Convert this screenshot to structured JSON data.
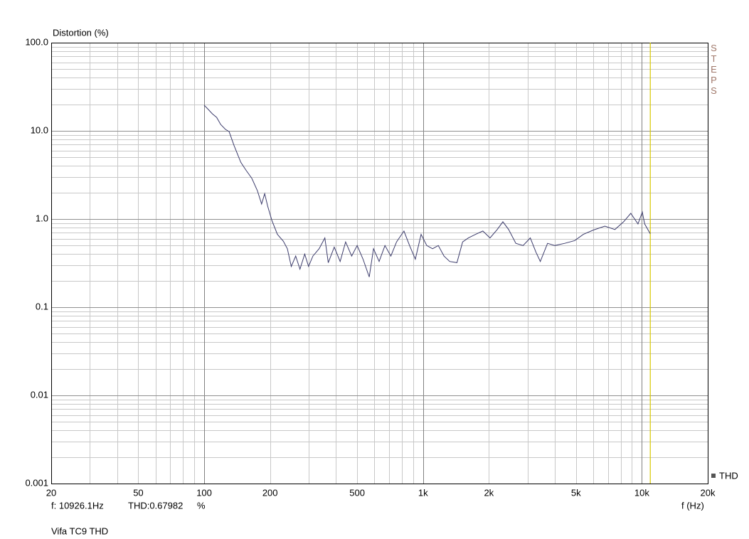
{
  "chart_data": {
    "type": "line",
    "y_label": "Distortion (%)",
    "x_label": "f (Hz)",
    "caption": "Vifa TC9 THD",
    "side_label": "STEPS",
    "xlog": true,
    "ylog": true,
    "grid": true,
    "minor_grid": true,
    "xlim": [
      20,
      20000
    ],
    "ylim": [
      0.001,
      100
    ],
    "xticks": [
      20,
      50,
      100,
      200,
      500,
      {
        "value": 1000,
        "label": "1k"
      },
      {
        "value": 2000,
        "label": "2k"
      },
      {
        "value": 5000,
        "label": "5k"
      },
      {
        "value": 10000,
        "label": "10k"
      },
      {
        "value": 20000,
        "label": "20k"
      }
    ],
    "yticks": [
      0.001,
      0.01,
      0.1,
      {
        "value": 1,
        "label": "1.0"
      },
      {
        "value": 10,
        "label": "10.0"
      },
      {
        "value": 100,
        "label": "100.0"
      }
    ],
    "legend": "bottom-right",
    "cursor": {
      "x": {
        "value": 10926.1,
        "label": "f:  10926.1Hz"
      },
      "y": {
        "value": 0.67982,
        "label": "THD:0.67982"
      },
      "unit": "%",
      "color": "#d8c800"
    },
    "x": [
      100,
      103,
      109,
      114,
      119,
      125,
      130,
      137,
      147,
      155,
      165,
      175,
      183,
      189,
      195,
      204,
      216,
      230,
      240,
      250,
      262,
      274,
      288,
      300,
      314,
      335,
      356,
      369,
      393,
      418,
      443,
      472,
      500,
      532,
      568,
      594,
      630,
      670,
      713,
      757,
      818,
      868,
      922,
      980,
      1040,
      1105,
      1174,
      1247,
      1324,
      1429,
      1517,
      1612,
      1739,
      1876,
      2024,
      2183,
      2318,
      2462,
      2655,
      2865,
      3090,
      3282,
      3436,
      3707,
      4000,
      4443,
      4935,
      5403,
      6002,
      6776,
      7530,
      8250,
      8900,
      9600,
      10050,
      10300,
      10926.1
    ],
    "series": [
      {
        "name": "THD",
        "color": "#3c3c6c",
        "values": [
          19.5,
          18.1,
          15.6,
          14.2,
          11.8,
          10.4,
          9.8,
          6.8,
          4.4,
          3.6,
          2.9,
          2.1,
          1.48,
          1.94,
          1.4,
          0.96,
          0.67,
          0.56,
          0.46,
          0.29,
          0.38,
          0.27,
          0.4,
          0.29,
          0.38,
          0.46,
          0.61,
          0.32,
          0.48,
          0.33,
          0.55,
          0.38,
          0.5,
          0.35,
          0.22,
          0.46,
          0.33,
          0.5,
          0.38,
          0.55,
          0.73,
          0.5,
          0.35,
          0.67,
          0.5,
          0.46,
          0.5,
          0.38,
          0.33,
          0.32,
          0.55,
          0.61,
          0.67,
          0.73,
          0.61,
          0.76,
          0.93,
          0.76,
          0.53,
          0.5,
          0.61,
          0.42,
          0.33,
          0.53,
          0.5,
          0.53,
          0.57,
          0.67,
          0.75,
          0.83,
          0.76,
          0.93,
          1.16,
          0.88,
          1.2,
          0.88,
          0.68
        ]
      }
    ]
  }
}
